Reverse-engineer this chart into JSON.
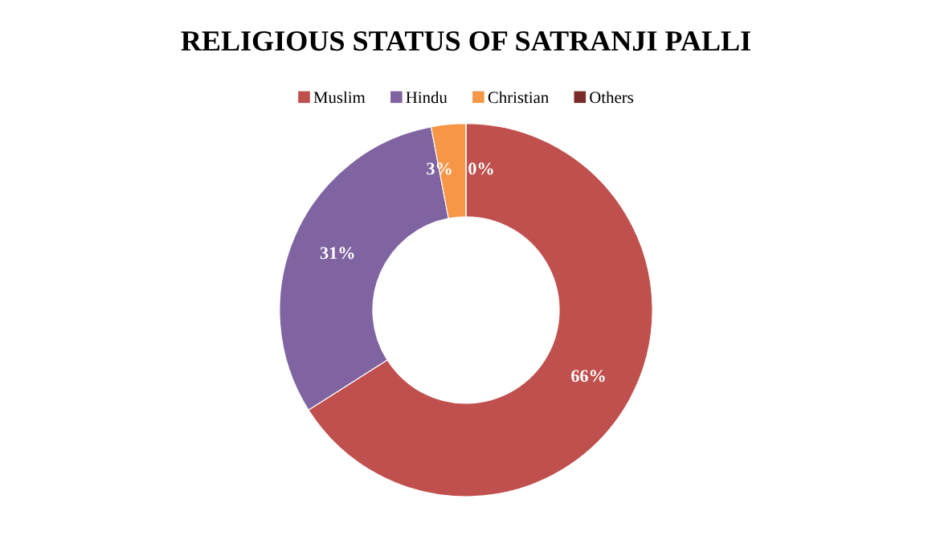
{
  "chart_data": {
    "type": "donut",
    "title": "RELIGIOUS STATUS OF SATRANJI PALLI",
    "categories": [
      "Muslim",
      "Hindu",
      "Christian",
      "Others"
    ],
    "values": [
      66,
      31,
      3,
      0
    ],
    "colors": [
      "#c0504d",
      "#8064a2",
      "#f79646",
      "#772c2a"
    ],
    "value_labels": [
      "66%",
      "31%",
      "3%",
      "0%"
    ],
    "legend": "top"
  }
}
